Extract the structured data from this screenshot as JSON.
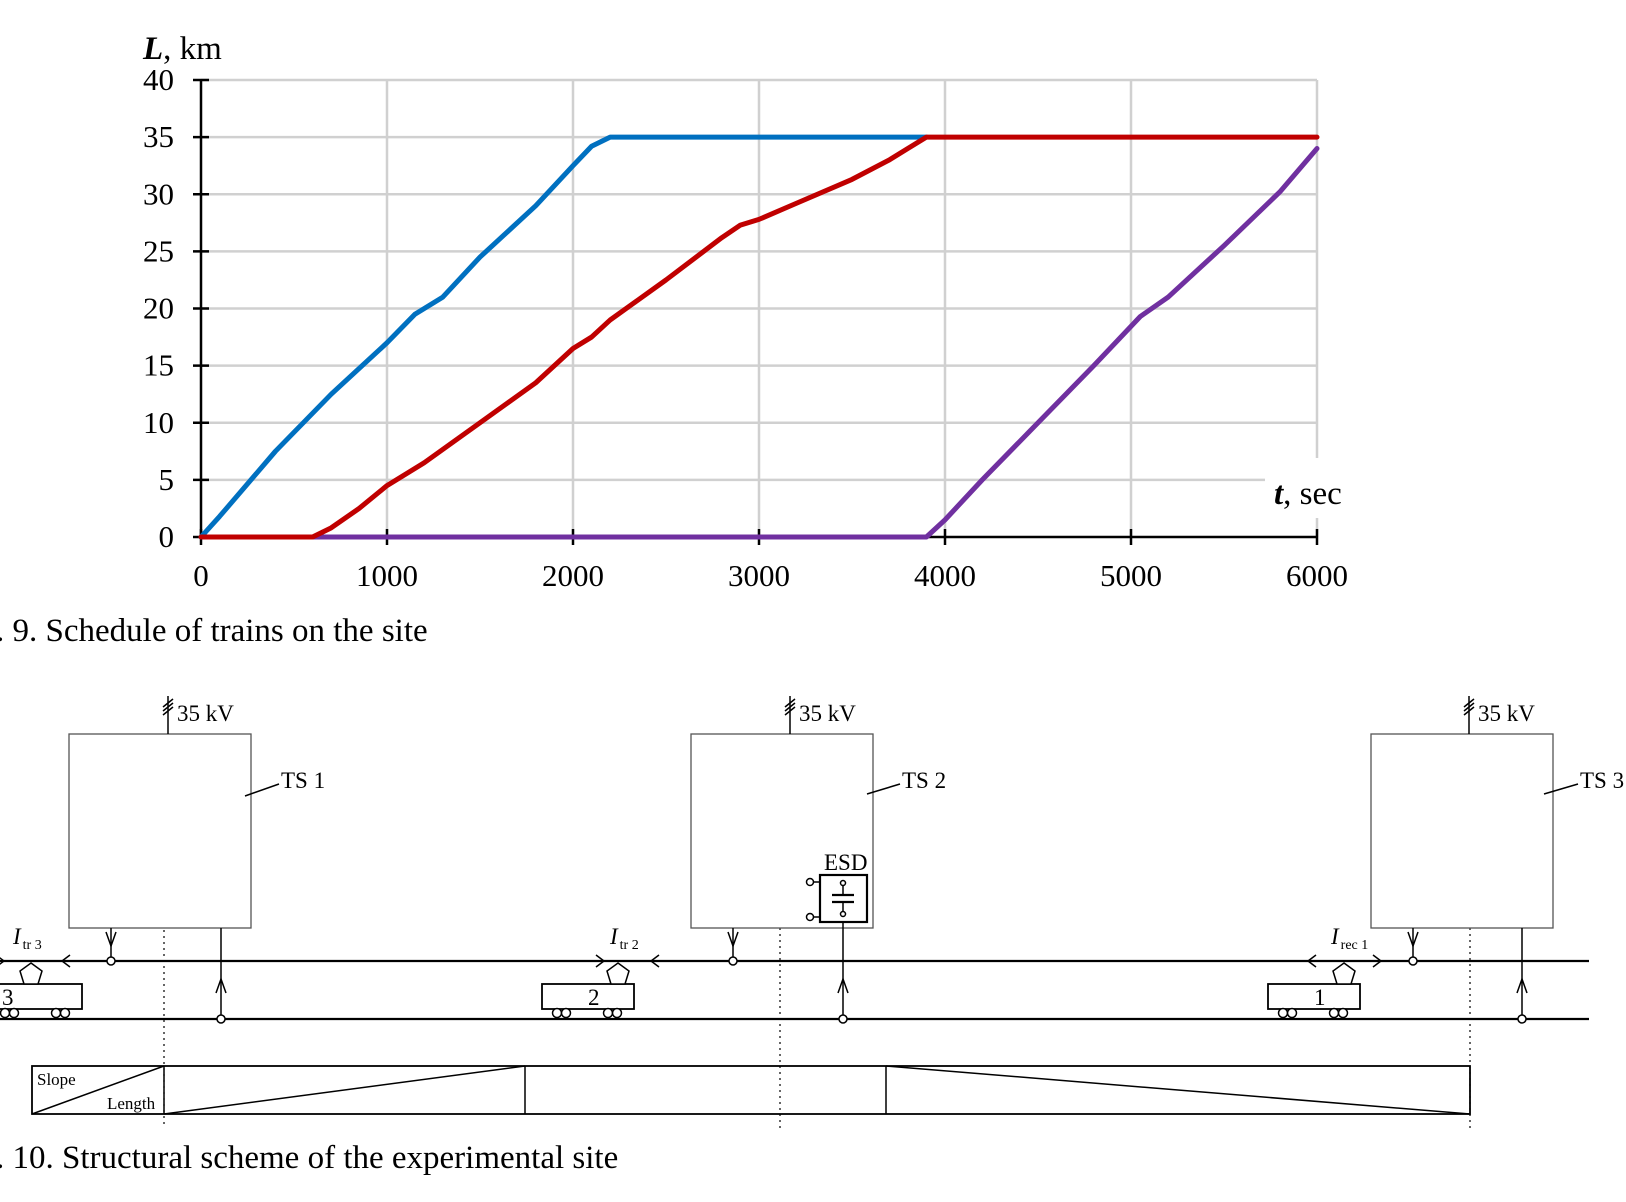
{
  "figure9": {
    "caption": ". 9. Schedule of trains on the site",
    "y_label_symbol": "L",
    "y_label_unit": ", km",
    "x_label_symbol": "t",
    "x_label_unit": ", sec"
  },
  "chart_data": {
    "type": "line",
    "xlim": [
      0,
      6000
    ],
    "ylim": [
      0,
      40
    ],
    "x_ticks": [
      "0",
      "1000",
      "2000",
      "3000",
      "4000",
      "5000",
      "6000"
    ],
    "y_ticks": [
      "0",
      "5",
      "10",
      "15",
      "20",
      "25",
      "30",
      "35",
      "40"
    ],
    "grid": true,
    "series": [
      {
        "color": "#0070C0",
        "points": [
          [
            0,
            0
          ],
          [
            100,
            1.8
          ],
          [
            400,
            7.5
          ],
          [
            700,
            12.5
          ],
          [
            1000,
            17
          ],
          [
            1150,
            19.5
          ],
          [
            1300,
            21
          ],
          [
            1500,
            24.5
          ],
          [
            1800,
            29
          ],
          [
            2000,
            32.5
          ],
          [
            2100,
            34.2
          ],
          [
            2200,
            35
          ],
          [
            3900,
            35
          ]
        ]
      },
      {
        "color": "#7030A0",
        "points": [
          [
            600,
            0
          ],
          [
            3900,
            0
          ],
          [
            4000,
            1.5
          ],
          [
            4200,
            5
          ],
          [
            4500,
            10
          ],
          [
            4800,
            15
          ],
          [
            5050,
            19.3
          ],
          [
            5200,
            21
          ],
          [
            5500,
            25.5
          ],
          [
            5800,
            30.2
          ],
          [
            6000,
            34
          ]
        ]
      },
      {
        "color": "#C00000",
        "points": [
          [
            0,
            0
          ],
          [
            600,
            0
          ],
          [
            700,
            0.8
          ],
          [
            850,
            2.5
          ],
          [
            1000,
            4.5
          ],
          [
            1200,
            6.5
          ],
          [
            1500,
            10
          ],
          [
            1800,
            13.5
          ],
          [
            2000,
            16.5
          ],
          [
            2100,
            17.5
          ],
          [
            2200,
            19
          ],
          [
            2500,
            22.5
          ],
          [
            2800,
            26.2
          ],
          [
            2900,
            27.3
          ],
          [
            3000,
            27.8
          ],
          [
            3200,
            29.2
          ],
          [
            3500,
            31.3
          ],
          [
            3700,
            33
          ],
          [
            3800,
            34
          ],
          [
            3900,
            35
          ],
          [
            6000,
            35
          ]
        ]
      }
    ]
  },
  "figure10": {
    "caption": ". 10. Structural scheme of the experimental site",
    "voltage": "35 kV",
    "substations": [
      "TS 1",
      "TS 2",
      "TS 3"
    ],
    "esd_label": "ESD",
    "trains": [
      "3",
      "2",
      "1"
    ],
    "currents": [
      {
        "symbol": "I",
        "sub": "tr 3"
      },
      {
        "symbol": "I",
        "sub": "tr 2"
      },
      {
        "symbol": "I",
        "sub": "rec 1"
      }
    ],
    "slope_header": "Slope",
    "length_header": "Length"
  }
}
